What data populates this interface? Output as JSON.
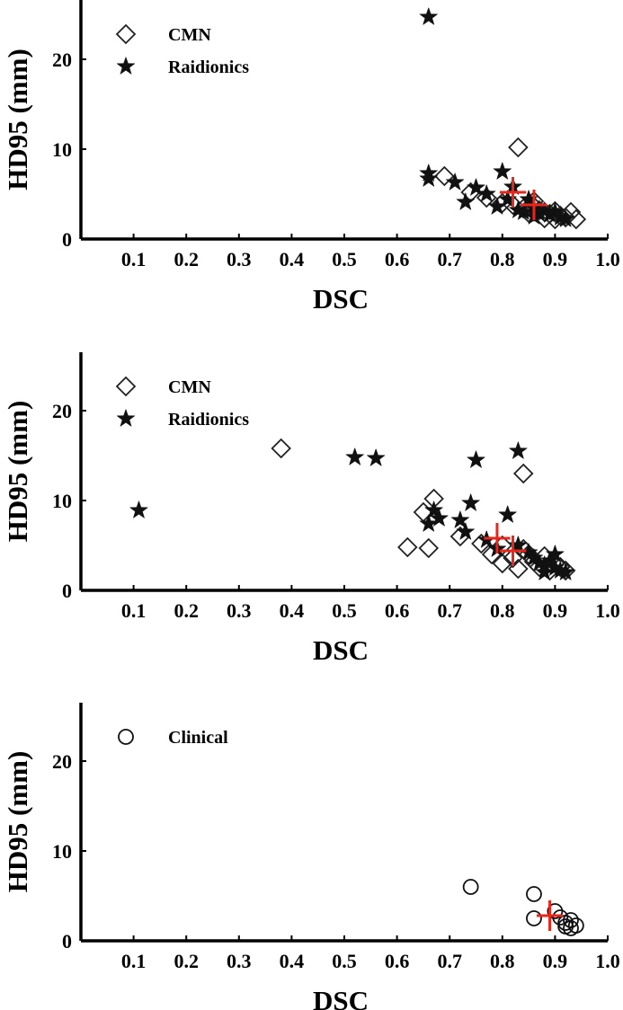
{
  "chart_data": [
    {
      "type": "scatter",
      "xlabel": "DSC",
      "ylabel": "HD95 (mm)",
      "xlim": [
        0,
        1.0
      ],
      "ylim": [
        0,
        26
      ],
      "xticks": [
        0.1,
        0.2,
        0.3,
        0.4,
        0.5,
        0.6,
        0.7,
        0.8,
        0.9,
        1.0
      ],
      "xtick_labels": [
        "0.1",
        "0.2",
        "0.3",
        "0.4",
        "0.5",
        "0.6",
        "0.7",
        "0.8",
        "0.9",
        "1.0"
      ],
      "yticks": [
        0,
        10,
        20
      ],
      "ytick_labels": [
        "0",
        "10",
        "20"
      ],
      "legend_position": "top-left",
      "grid": false,
      "series": [
        {
          "name": "CMN",
          "marker": "diamond",
          "color": "#222222",
          "points": [
            [
              0.83,
              10.2
            ],
            [
              0.69,
              7.0
            ],
            [
              0.74,
              5.2
            ],
            [
              0.77,
              4.6
            ],
            [
              0.8,
              4.0
            ],
            [
              0.82,
              3.8
            ],
            [
              0.84,
              3.4
            ],
            [
              0.86,
              3.6
            ],
            [
              0.87,
              3.2
            ],
            [
              0.88,
              3.0
            ],
            [
              0.89,
              2.8
            ],
            [
              0.9,
              3.1
            ],
            [
              0.91,
              2.6
            ],
            [
              0.92,
              2.4
            ],
            [
              0.93,
              3.0
            ],
            [
              0.94,
              2.2
            ],
            [
              0.85,
              2.9
            ],
            [
              0.88,
              2.3
            ],
            [
              0.86,
              4.2
            ],
            [
              0.9,
              2.2
            ]
          ]
        },
        {
          "name": "Raidionics",
          "marker": "star",
          "color": "#111111",
          "points": [
            [
              0.66,
              24.7
            ],
            [
              0.66,
              7.3
            ],
            [
              0.66,
              6.7
            ],
            [
              0.71,
              6.3
            ],
            [
              0.73,
              4.1
            ],
            [
              0.75,
              5.7
            ],
            [
              0.77,
              5.0
            ],
            [
              0.79,
              3.6
            ],
            [
              0.8,
              7.5
            ],
            [
              0.81,
              4.4
            ],
            [
              0.82,
              5.8
            ],
            [
              0.83,
              3.2
            ],
            [
              0.84,
              3.0
            ],
            [
              0.85,
              4.4
            ],
            [
              0.86,
              3.4
            ],
            [
              0.87,
              2.8
            ],
            [
              0.88,
              3.1
            ],
            [
              0.89,
              2.7
            ],
            [
              0.9,
              3.0
            ],
            [
              0.91,
              2.4
            ],
            [
              0.92,
              2.2
            ],
            [
              0.86,
              2.5
            ]
          ]
        }
      ],
      "summary_markers": {
        "color": "#e8261c",
        "points": [
          [
            0.82,
            5.2
          ],
          [
            0.86,
            3.8
          ]
        ],
        "arm_dsc": 0.025,
        "arm_hd": 1.7
      }
    },
    {
      "type": "scatter",
      "xlabel": "DSC",
      "ylabel": "HD95 (mm)",
      "xlim": [
        0,
        1.0
      ],
      "ylim": [
        0,
        26
      ],
      "xticks": [
        0.1,
        0.2,
        0.3,
        0.4,
        0.5,
        0.6,
        0.7,
        0.8,
        0.9,
        1.0
      ],
      "xtick_labels": [
        "0.1",
        "0.2",
        "0.3",
        "0.4",
        "0.5",
        "0.6",
        "0.7",
        "0.8",
        "0.9",
        "1.0"
      ],
      "yticks": [
        0,
        10,
        20
      ],
      "ytick_labels": [
        "0",
        "10",
        "20"
      ],
      "legend_position": "top-left",
      "grid": false,
      "series": [
        {
          "name": "CMN",
          "marker": "diamond",
          "color": "#222222",
          "points": [
            [
              0.38,
              15.8
            ],
            [
              0.84,
              13.0
            ],
            [
              0.67,
              10.2
            ],
            [
              0.65,
              8.7
            ],
            [
              0.62,
              4.8
            ],
            [
              0.66,
              4.7
            ],
            [
              0.72,
              6.0
            ],
            [
              0.76,
              5.2
            ],
            [
              0.78,
              4.0
            ],
            [
              0.8,
              3.0
            ],
            [
              0.82,
              3.6
            ],
            [
              0.83,
              2.4
            ],
            [
              0.84,
              4.6
            ],
            [
              0.86,
              3.2
            ],
            [
              0.87,
              2.6
            ],
            [
              0.88,
              3.8
            ],
            [
              0.89,
              2.2
            ],
            [
              0.9,
              3.0
            ],
            [
              0.91,
              2.6
            ],
            [
              0.92,
              2.2
            ],
            [
              0.85,
              4.0
            ],
            [
              0.8,
              5.0
            ]
          ]
        },
        {
          "name": "Raidionics",
          "marker": "star",
          "color": "#111111",
          "points": [
            [
              0.11,
              8.9
            ],
            [
              0.52,
              14.8
            ],
            [
              0.56,
              14.7
            ],
            [
              0.75,
              14.5
            ],
            [
              0.83,
              15.5
            ],
            [
              0.67,
              8.9
            ],
            [
              0.68,
              8.0
            ],
            [
              0.66,
              7.4
            ],
            [
              0.72,
              7.8
            ],
            [
              0.74,
              9.7
            ],
            [
              0.81,
              8.4
            ],
            [
              0.73,
              6.5
            ],
            [
              0.77,
              5.6
            ],
            [
              0.79,
              4.6
            ],
            [
              0.83,
              5.0
            ],
            [
              0.85,
              4.2
            ],
            [
              0.86,
              3.6
            ],
            [
              0.87,
              3.0
            ],
            [
              0.88,
              2.8
            ],
            [
              0.89,
              3.3
            ],
            [
              0.9,
              2.5
            ],
            [
              0.91,
              2.2
            ],
            [
              0.92,
              2.0
            ],
            [
              0.9,
              4.0
            ],
            [
              0.88,
              2.0
            ]
          ]
        }
      ],
      "summary_markers": {
        "color": "#e8261c",
        "points": [
          [
            0.79,
            5.8
          ],
          [
            0.82,
            4.4
          ]
        ],
        "arm_dsc": 0.025,
        "arm_hd": 1.7
      }
    },
    {
      "type": "scatter",
      "xlabel": "DSC",
      "ylabel": "HD95 (mm)",
      "xlim": [
        0,
        1.0
      ],
      "ylim": [
        0,
        26
      ],
      "xticks": [
        0.1,
        0.2,
        0.3,
        0.4,
        0.5,
        0.6,
        0.7,
        0.8,
        0.9,
        1.0
      ],
      "xtick_labels": [
        "0.1",
        "0.2",
        "0.3",
        "0.4",
        "0.5",
        "0.6",
        "0.7",
        "0.8",
        "0.9",
        "1.0"
      ],
      "yticks": [
        0,
        10,
        20
      ],
      "ytick_labels": [
        "0",
        "10",
        "20"
      ],
      "legend_position": "top-left",
      "grid": false,
      "series": [
        {
          "name": "Clinical",
          "marker": "circle",
          "color": "#111111",
          "points": [
            [
              0.74,
              6.0
            ],
            [
              0.86,
              5.2
            ],
            [
              0.86,
              2.5
            ],
            [
              0.9,
              3.3
            ],
            [
              0.91,
              2.6
            ],
            [
              0.92,
              2.0
            ],
            [
              0.93,
              2.3
            ],
            [
              0.92,
              1.6
            ],
            [
              0.94,
              1.7
            ],
            [
              0.93,
              1.4
            ]
          ]
        }
      ],
      "summary_markers": {
        "color": "#e8261c",
        "points": [
          [
            0.89,
            2.8
          ]
        ],
        "arm_dsc": 0.025,
        "arm_hd": 1.7
      }
    }
  ]
}
